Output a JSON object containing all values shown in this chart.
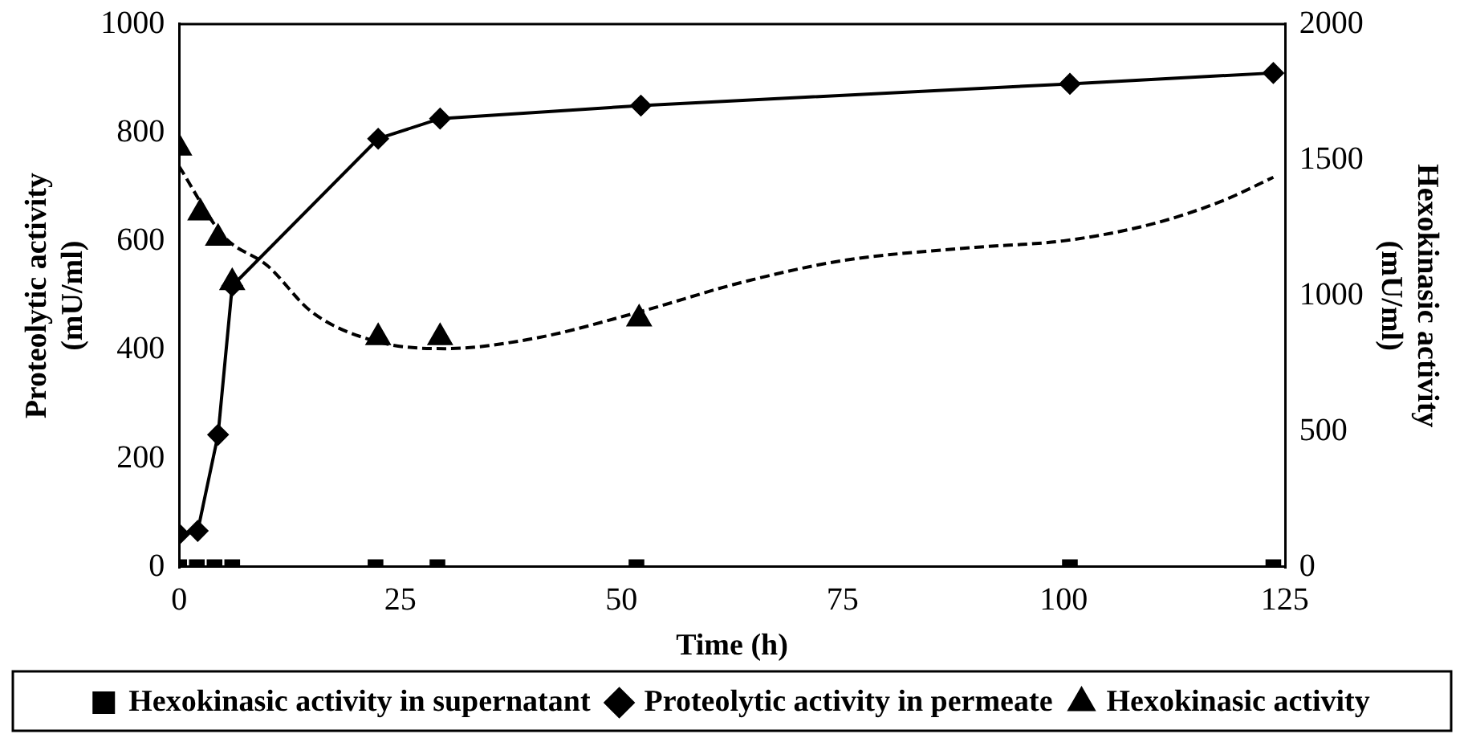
{
  "chart_data": {
    "type": "line",
    "xlabel": "Time (h)",
    "ylabel": "Proteolytic activity\n(mU/ml)",
    "y2label": "Hexokinasic activity\n(mU/ml)",
    "xlim": [
      0,
      125
    ],
    "xticks": [
      0,
      25,
      50,
      75,
      100,
      125
    ],
    "ylim": [
      0,
      1000
    ],
    "yticks": [
      0,
      200,
      400,
      600,
      800,
      1000
    ],
    "y2lim": [
      0,
      2000
    ],
    "y2ticks": [
      0,
      500,
      1000,
      1500,
      2000
    ],
    "grid": false,
    "legend": "bottom",
    "series": [
      {
        "name": "Hexokinasic activity in supernatant",
        "type": "scatter",
        "marker": "square",
        "axis": "y2",
        "color": "#000000",
        "x": [
          0,
          2,
          4,
          6,
          22.2,
          29.2,
          51.7,
          100.7,
          123.7
        ],
        "values": [
          0,
          0,
          0,
          0,
          0,
          0,
          0,
          0,
          0
        ]
      },
      {
        "name": "Proteolytic activity in permeate",
        "marker": "diamond",
        "line_style": "solid",
        "color": "#000000",
        "x": [
          0,
          2.1,
          4.4,
          6,
          22.5,
          29.5,
          52.2,
          100.7,
          123.7
        ],
        "values": [
          61,
          67,
          244,
          518,
          789,
          826,
          850,
          890,
          910
        ]
      },
      {
        "name": "Hexokinasic activity",
        "type": "scatter",
        "marker": "triangle",
        "axis": "y2",
        "color": "#000000",
        "x": [
          0,
          2.4,
          4.4,
          6,
          22.5,
          29.5,
          52
        ],
        "values": [
          1544,
          1305,
          1212,
          1049,
          846,
          846,
          915
        ]
      },
      {
        "type": "line",
        "marker": "none",
        "line_style": "dashed",
        "axis": "y2",
        "color": "#000000",
        "x": [
          0,
          5,
          10,
          15,
          22.5,
          30,
          40,
          52,
          63.6,
          75,
          90,
          100,
          110,
          118,
          123.7
        ],
        "values": [
          1476,
          1220,
          1110,
          940,
          830,
          805,
          842,
          940,
          1049,
          1129,
          1178,
          1202,
          1264,
          1350,
          1436
        ]
      }
    ]
  }
}
